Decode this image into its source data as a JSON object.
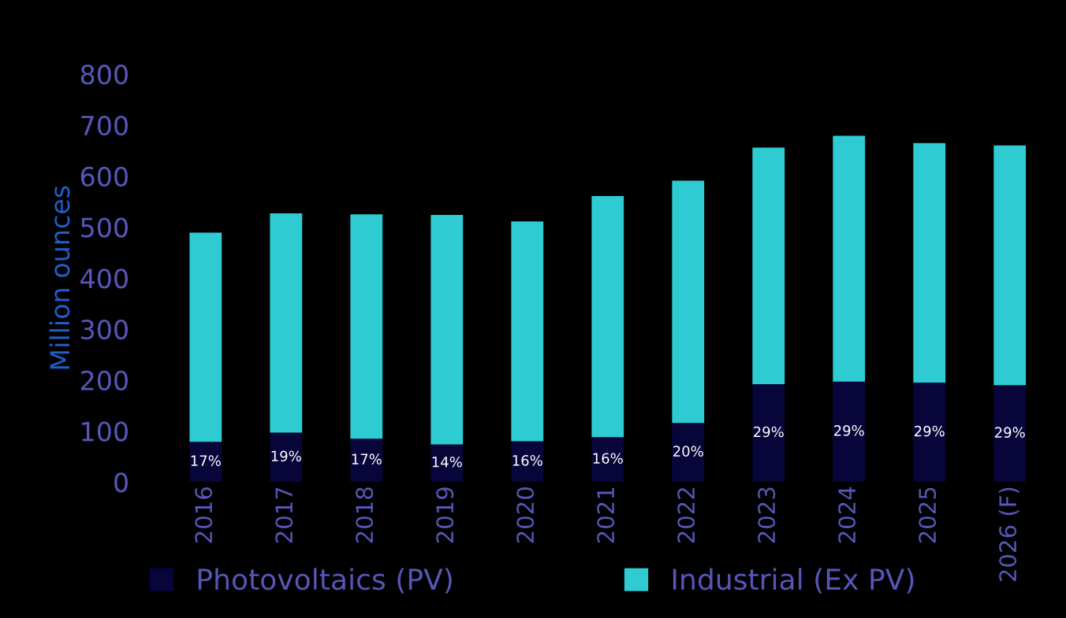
{
  "chart_data": {
    "type": "bar",
    "stacked": true,
    "ylabel": "Million ounces",
    "categories": [
      "2016",
      "2017",
      "2018",
      "2019",
      "2020",
      "2021",
      "2022",
      "2023",
      "2024",
      "2025",
      "2026 (F)"
    ],
    "series": [
      {
        "name": "Photovoltaics (PV)",
        "color": "#07053a",
        "values": [
          79,
          97,
          85,
          74,
          80,
          88,
          116,
          192,
          197,
          195,
          190
        ]
      },
      {
        "name": "Industrial (Ex PV)",
        "color": "#2ecbd3",
        "values": [
          410,
          430,
          440,
          450,
          431,
          473,
          475,
          464,
          482,
          470,
          470
        ]
      }
    ],
    "annotations": [
      "17%",
      "19%",
      "17%",
      "14%",
      "16%",
      "16%",
      "20%",
      "29%",
      "29%",
      "29%",
      "29%"
    ],
    "ylim": [
      0,
      800
    ],
    "yticks": [
      0,
      100,
      200,
      300,
      400,
      500,
      600,
      700,
      800
    ],
    "grid": false,
    "legend": "bottom"
  }
}
